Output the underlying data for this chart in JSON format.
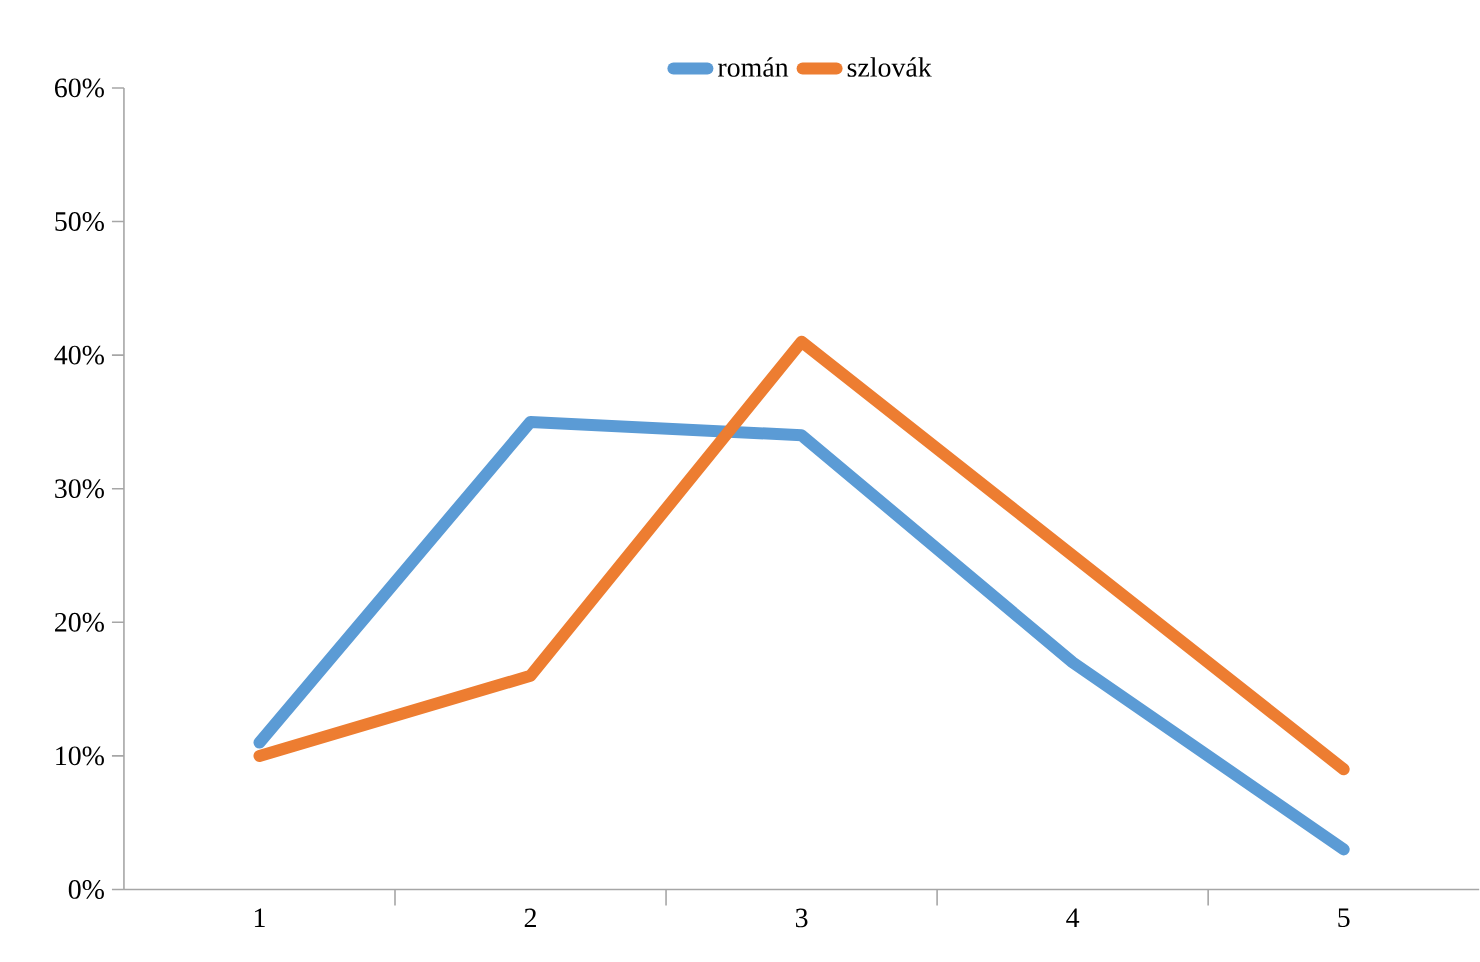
{
  "chart_data": {
    "type": "line",
    "categories": [
      "1",
      "2",
      "3",
      "4",
      "5"
    ],
    "series": [
      {
        "name": "román",
        "color": "#5b9bd5",
        "values": [
          11,
          35,
          34,
          17,
          3
        ]
      },
      {
        "name": "szlovák",
        "color": "#ed7d31",
        "values": [
          10,
          16,
          41,
          25,
          9
        ]
      }
    ],
    "ylim": [
      0,
      60
    ],
    "yticks": [
      {
        "value": 0,
        "label": "0%"
      },
      {
        "value": 10,
        "label": "10%"
      },
      {
        "value": 20,
        "label": "20%"
      },
      {
        "value": 30,
        "label": "30%"
      },
      {
        "value": 40,
        "label": "40%"
      },
      {
        "value": 50,
        "label": "50%"
      },
      {
        "value": 60,
        "label": "60%"
      }
    ],
    "legend": "top",
    "grid": false,
    "marker": "none",
    "line_style": "solid"
  }
}
